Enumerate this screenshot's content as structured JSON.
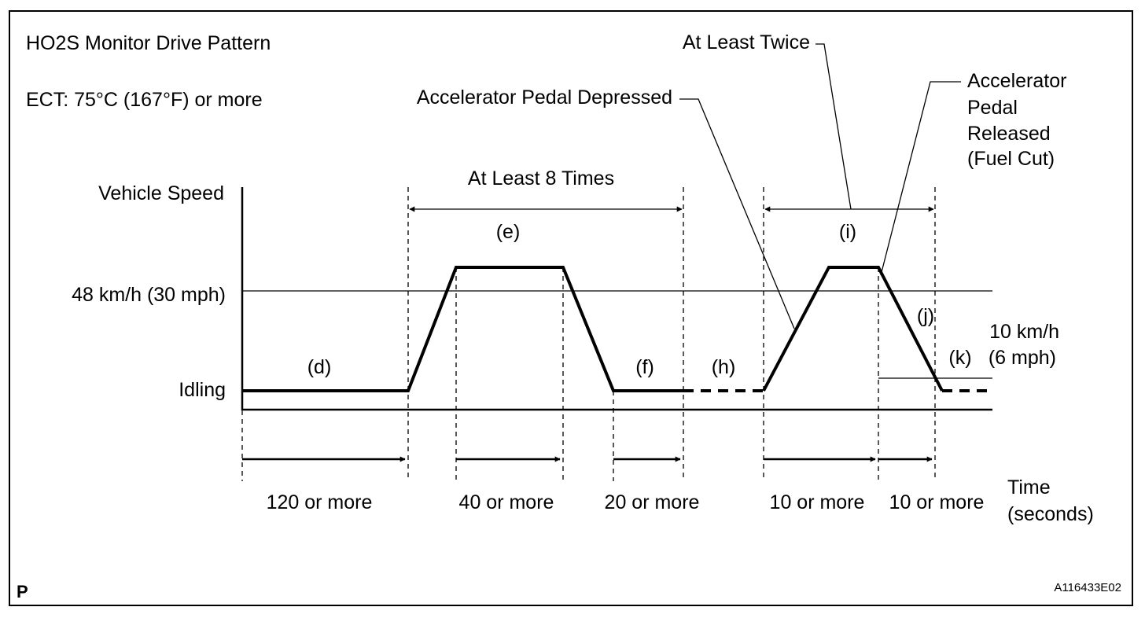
{
  "title": "HO2S Monitor Drive Pattern",
  "condition": "ECT: 75°C (167°F) or more",
  "axis": {
    "y_label": "Vehicle Speed",
    "speed_48": "48 km/h (30 mph)",
    "idling": "Idling",
    "time_label": "Time",
    "time_unit": "(seconds)"
  },
  "annotations": {
    "at_least_8_times": "At Least 8 Times",
    "at_least_twice": "At Least Twice",
    "pedal_depressed": "Accelerator Pedal Depressed",
    "pedal_released": [
      "Accelerator",
      "Pedal",
      "Released",
      "(Fuel Cut)"
    ],
    "speed_10": [
      "10 km/h",
      "(6 mph)"
    ]
  },
  "phases": {
    "d": "(d)",
    "e": "(e)",
    "f": "(f)",
    "h": "(h)",
    "i": "(i)",
    "j": "(j)",
    "k": "(k)"
  },
  "durations": [
    "120 or more",
    "40 or more",
    "20 or more",
    "10 or more",
    "10 or more"
  ],
  "corner_mark": "P",
  "figure_id": "A116433E02"
}
